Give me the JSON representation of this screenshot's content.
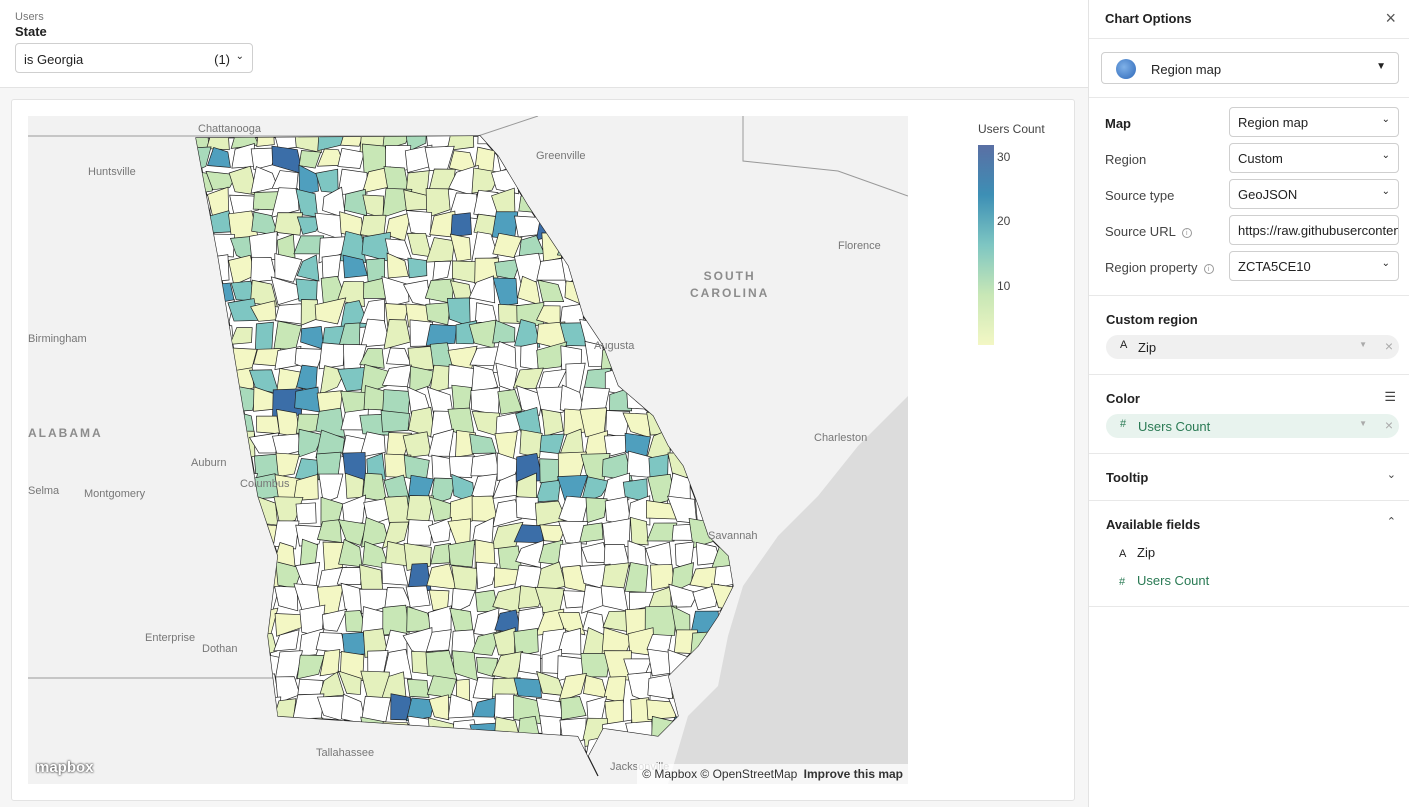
{
  "filter": {
    "group": "Users",
    "label": "State",
    "value": "is Georgia",
    "count": "(1)"
  },
  "map": {
    "cities": {
      "chattanooga": "Chattanooga",
      "huntsville": "Huntsville",
      "greenville": "Greenville",
      "florence": "Florence",
      "birmingham": "Birmingham",
      "augusta": "Augusta",
      "alabama": "ALABAMA",
      "charleston": "Charleston",
      "auburn": "Auburn",
      "montgomery": "Montgomery",
      "selma": "Selma",
      "columbus": "Columbus",
      "savannah": "Savannah",
      "enterprise": "Enterprise",
      "dothan": "Dothan",
      "tallahassee": "Tallahassee",
      "jacksonville": "Jacksonville"
    },
    "south_carolina_1": "SOUTH",
    "south_carolina_2": "CAROLINA",
    "logo": "mapbox",
    "attribution": "© Mapbox © OpenStreetMap",
    "improve": "Improve this map",
    "legend_title": "Users Count",
    "legend_ticks": [
      "30",
      "20",
      "10"
    ],
    "colors": {
      "high": "#5a6fa4",
      "mid": "#7ec6c2",
      "low": "#f3f7c4"
    }
  },
  "panel": {
    "title": "Chart Options",
    "viz_type": "Region map",
    "map_label": "Map",
    "map_value": "Region map",
    "region_label": "Region",
    "region_value": "Custom",
    "source_type_label": "Source type",
    "source_type_value": "GeoJSON",
    "source_url_label": "Source URL",
    "source_url_value": "https://raw.githubusercontent.com",
    "region_property_label": "Region property",
    "region_property_value": "ZCTA5CE10",
    "custom_region_title": "Custom region",
    "custom_region_field": "Zip",
    "color_title": "Color",
    "color_field": "Users Count",
    "tooltip_title": "Tooltip",
    "available_title": "Available fields",
    "available_fields": [
      "Zip",
      "Users Count"
    ]
  }
}
